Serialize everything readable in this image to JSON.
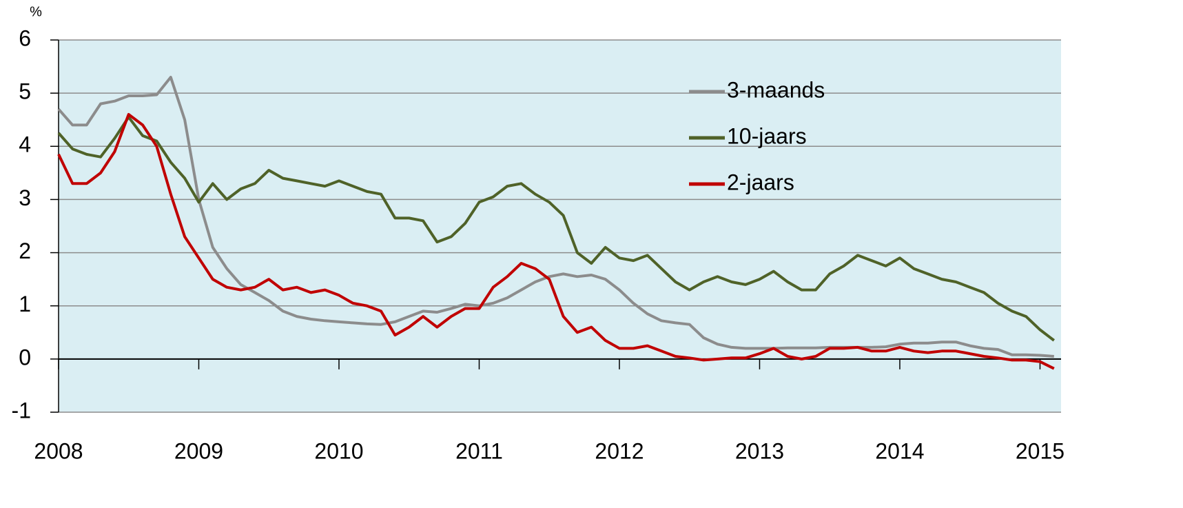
{
  "chart_data": {
    "type": "line",
    "y_label": "%",
    "x": [
      2008,
      2008.1,
      2008.2,
      2008.3,
      2008.4,
      2008.5,
      2008.6,
      2008.7,
      2008.8,
      2008.9,
      2009,
      2009.1,
      2009.2,
      2009.3,
      2009.4,
      2009.5,
      2009.6,
      2009.7,
      2009.8,
      2009.9,
      2010,
      2010.1,
      2010.2,
      2010.3,
      2010.4,
      2010.5,
      2010.6,
      2010.7,
      2010.8,
      2010.9,
      2011,
      2011.1,
      2011.2,
      2011.3,
      2011.4,
      2011.5,
      2011.6,
      2011.7,
      2011.8,
      2011.9,
      2012,
      2012.1,
      2012.2,
      2012.3,
      2012.4,
      2012.5,
      2012.6,
      2012.7,
      2012.8,
      2012.9,
      2013,
      2013.1,
      2013.2,
      2013.3,
      2013.4,
      2013.5,
      2013.6,
      2013.7,
      2013.8,
      2013.9,
      2014,
      2014.1,
      2014.2,
      2014.3,
      2014.4,
      2014.5,
      2014.6,
      2014.7,
      2014.8,
      2014.9,
      2015,
      2015.1
    ],
    "series": [
      {
        "name": "3-maands",
        "color": "#8c8c8c",
        "values": [
          4.7,
          4.4,
          4.4,
          4.8,
          4.85,
          4.95,
          4.95,
          4.97,
          5.3,
          4.5,
          3.0,
          2.1,
          1.7,
          1.4,
          1.25,
          1.1,
          0.9,
          0.8,
          0.75,
          0.72,
          0.7,
          0.68,
          0.66,
          0.65,
          0.7,
          0.8,
          0.9,
          0.88,
          0.95,
          1.03,
          1.0,
          1.05,
          1.15,
          1.3,
          1.45,
          1.55,
          1.6,
          1.55,
          1.58,
          1.5,
          1.3,
          1.05,
          0.85,
          0.72,
          0.68,
          0.65,
          0.4,
          0.28,
          0.22,
          0.2,
          0.2,
          0.2,
          0.21,
          0.21,
          0.21,
          0.22,
          0.22,
          0.22,
          0.22,
          0.23,
          0.28,
          0.3,
          0.3,
          0.32,
          0.32,
          0.25,
          0.2,
          0.18,
          0.08,
          0.08,
          0.07,
          0.05
        ]
      },
      {
        "name": "10-jaars",
        "color": "#4f6228",
        "values": [
          4.25,
          3.95,
          3.85,
          3.8,
          4.15,
          4.55,
          4.2,
          4.1,
          3.7,
          3.4,
          2.95,
          3.3,
          3.0,
          3.2,
          3.3,
          3.55,
          3.4,
          3.35,
          3.3,
          3.25,
          3.35,
          3.25,
          3.15,
          3.1,
          2.65,
          2.65,
          2.6,
          2.2,
          2.3,
          2.55,
          2.95,
          3.05,
          3.25,
          3.3,
          3.1,
          2.95,
          2.7,
          2.0,
          1.8,
          2.1,
          1.9,
          1.85,
          1.95,
          1.7,
          1.45,
          1.3,
          1.45,
          1.55,
          1.45,
          1.4,
          1.5,
          1.65,
          1.45,
          1.3,
          1.3,
          1.6,
          1.75,
          1.95,
          1.85,
          1.75,
          1.9,
          1.7,
          1.6,
          1.5,
          1.45,
          1.35,
          1.25,
          1.05,
          0.9,
          0.8,
          0.55,
          0.35
        ]
      },
      {
        "name": "2-jaars",
        "color": "#c00000",
        "values": [
          3.85,
          3.3,
          3.3,
          3.5,
          3.9,
          4.6,
          4.4,
          4.0,
          3.1,
          2.3,
          1.9,
          1.5,
          1.35,
          1.3,
          1.35,
          1.5,
          1.3,
          1.35,
          1.25,
          1.3,
          1.2,
          1.05,
          1.0,
          0.9,
          0.45,
          0.6,
          0.8,
          0.6,
          0.8,
          0.95,
          0.95,
          1.35,
          1.55,
          1.8,
          1.7,
          1.5,
          0.8,
          0.5,
          0.6,
          0.35,
          0.2,
          0.2,
          0.25,
          0.15,
          0.05,
          0.02,
          -0.02,
          0.0,
          0.02,
          0.02,
          0.1,
          0.2,
          0.05,
          0.0,
          0.05,
          0.2,
          0.2,
          0.22,
          0.15,
          0.15,
          0.22,
          0.15,
          0.12,
          0.15,
          0.15,
          0.1,
          0.05,
          0.02,
          -0.02,
          -0.02,
          -0.05,
          -0.18
        ]
      }
    ],
    "xlim": [
      2008,
      2015.15
    ],
    "xticks": [
      2008,
      2009,
      2010,
      2011,
      2012,
      2013,
      2014,
      2015
    ],
    "ylim": [
      -1,
      6
    ],
    "yticks": [
      -1,
      0,
      1,
      2,
      3,
      4,
      5,
      6
    ],
    "grid": true,
    "legend": "upper right"
  }
}
